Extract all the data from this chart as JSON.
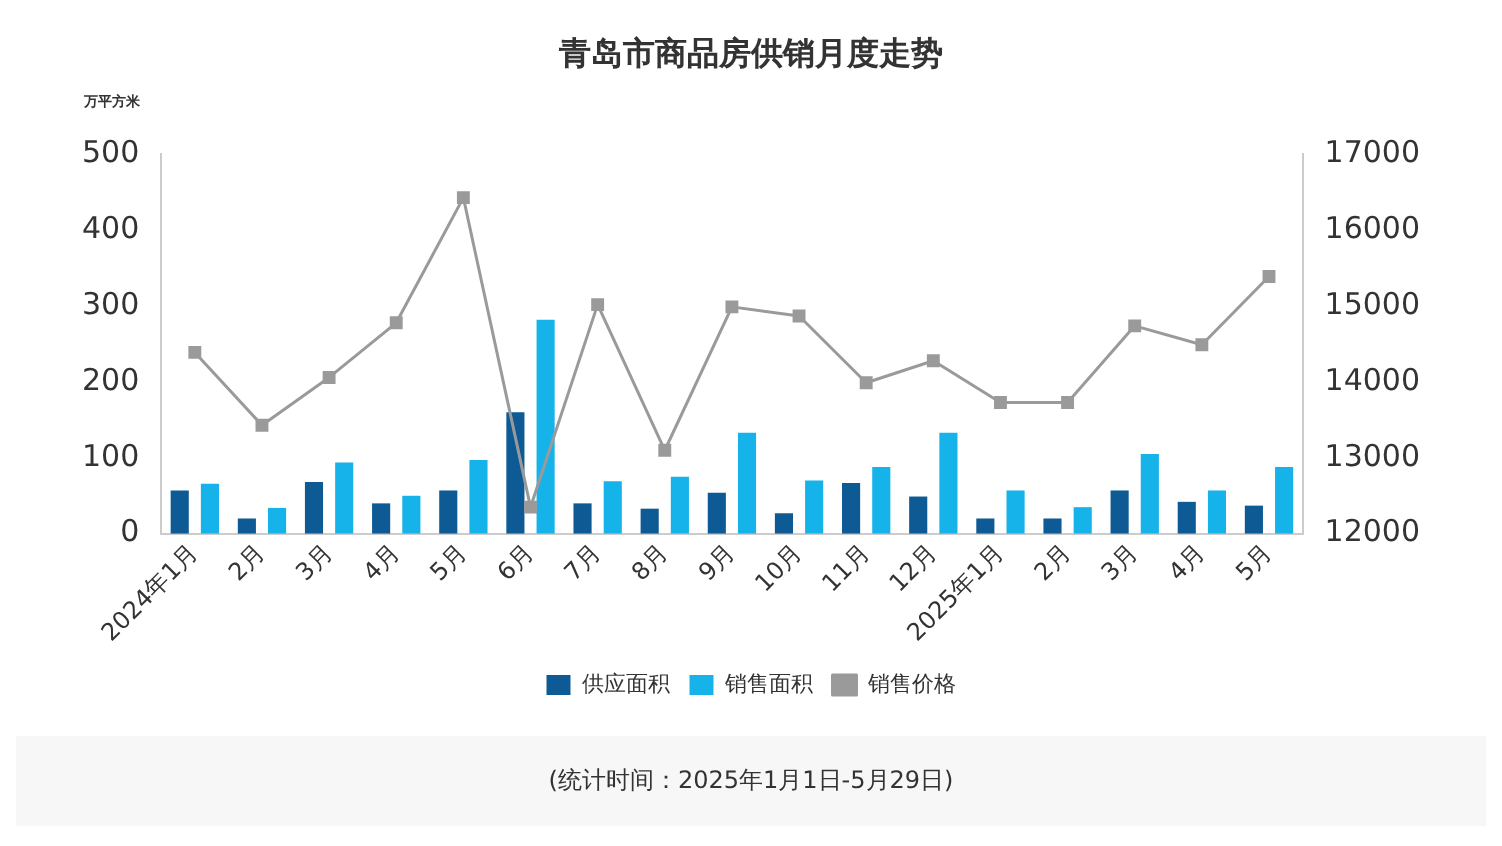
{
  "chart_data": {
    "type": "bar",
    "title": "青岛市商品房供销月度走势",
    "ylabel": "万平方米",
    "categories": [
      "2024年1月",
      "2月",
      "3月",
      "4月",
      "5月",
      "6月",
      "7月",
      "8月",
      "9月",
      "10月",
      "11月",
      "12月",
      "2025年1月",
      "2月",
      "3月",
      "4月",
      "5月"
    ],
    "series": [
      {
        "name": "供应面积",
        "color": "#0d5a94",
        "values": [
          57,
          20,
          68,
          40,
          57,
          160,
          40,
          33,
          54,
          27,
          67,
          49,
          20,
          20,
          57,
          42,
          37
        ]
      },
      {
        "name": "销售面积",
        "color": "#16b3ea",
        "values": [
          66,
          34,
          94,
          50,
          97,
          282,
          69,
          75,
          133,
          70,
          88,
          133,
          57,
          35,
          105,
          57,
          88
        ]
      },
      {
        "name": "销售价格",
        "type": "line",
        "axis": "y2",
        "color": "#9a9a9a",
        "marker": "square",
        "values": [
          14390,
          13430,
          14060,
          14780,
          16430,
          12350,
          15020,
          13100,
          14990,
          14870,
          13990,
          14280,
          13730,
          13730,
          14740,
          14490,
          15390
        ]
      }
    ],
    "ylim": [
      0,
      500
    ],
    "yticks": [
      0,
      100,
      200,
      300,
      400,
      500
    ],
    "y2lim": [
      12000,
      17000
    ],
    "y2ticks": [
      12000,
      13000,
      14000,
      15000,
      16000,
      17000
    ],
    "grid": false,
    "legend": "bottom",
    "annotations": [
      "(统计时间：2025年1月1日-5月29日)"
    ]
  }
}
